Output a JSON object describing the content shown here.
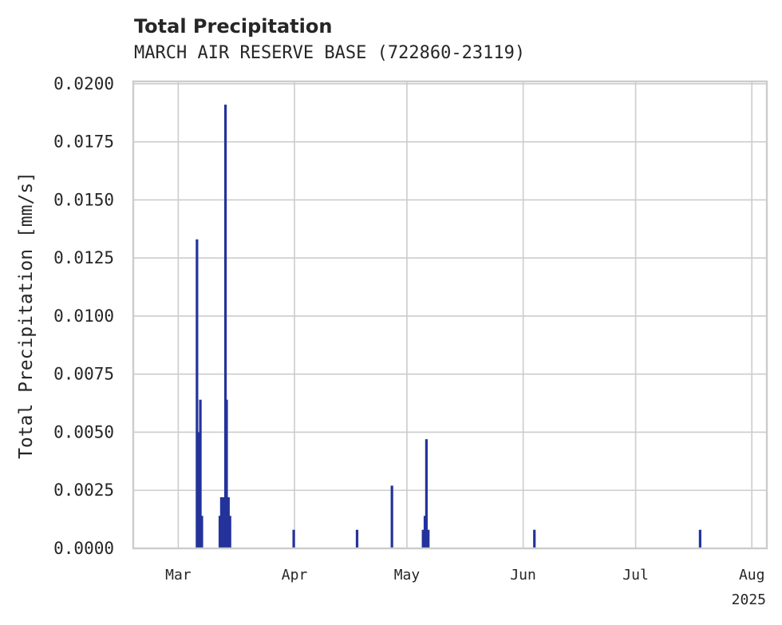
{
  "chart_data": {
    "type": "bar",
    "title": "Total Precipitation",
    "subtitle": "MARCH AIR RESERVE BASE (722860-23119)",
    "xlabel": "",
    "ylabel": "Total Precipitation [mm/s]",
    "year_label": "2025",
    "ylim": [
      0,
      0.0201
    ],
    "yticks": [
      "0.0000",
      "0.0025",
      "0.0050",
      "0.0075",
      "0.0100",
      "0.0125",
      "0.0150",
      "0.0175",
      "0.0200"
    ],
    "ytick_values": [
      0,
      0.0025,
      0.005,
      0.0075,
      0.01,
      0.0125,
      0.015,
      0.0175,
      0.02
    ],
    "xlim_day": [
      -12,
      157
    ],
    "xticks": [
      {
        "label": "Mar",
        "day": 0
      },
      {
        "label": "Apr",
        "day": 31
      },
      {
        "label": "May",
        "day": 61
      },
      {
        "label": "Jun",
        "day": 92
      },
      {
        "label": "Jul",
        "day": 122
      },
      {
        "label": "Aug",
        "day": 153
      }
    ],
    "series": [
      {
        "name": "Total Precipitation",
        "color": "#24339a",
        "points": [
          {
            "day": 5.0,
            "value": 0.0133
          },
          {
            "day": 5.4,
            "value": 0.005
          },
          {
            "day": 5.9,
            "value": 0.0064
          },
          {
            "day": 6.3,
            "value": 0.0014
          },
          {
            "day": 11.1,
            "value": 0.0014
          },
          {
            "day": 11.5,
            "value": 0.0022
          },
          {
            "day": 12.0,
            "value": 0.0022
          },
          {
            "day": 12.6,
            "value": 0.0191
          },
          {
            "day": 12.9,
            "value": 0.0064
          },
          {
            "day": 13.4,
            "value": 0.0022
          },
          {
            "day": 13.8,
            "value": 0.0014
          },
          {
            "day": 30.8,
            "value": 0.0008
          },
          {
            "day": 47.7,
            "value": 0.0008
          },
          {
            "day": 57.0,
            "value": 0.0027
          },
          {
            "day": 65.3,
            "value": 0.0008
          },
          {
            "day": 65.8,
            "value": 0.0014
          },
          {
            "day": 66.2,
            "value": 0.0047
          },
          {
            "day": 66.7,
            "value": 0.0008
          },
          {
            "day": 95.0,
            "value": 0.0008
          },
          {
            "day": 139.2,
            "value": 0.0008
          }
        ]
      }
    ]
  }
}
